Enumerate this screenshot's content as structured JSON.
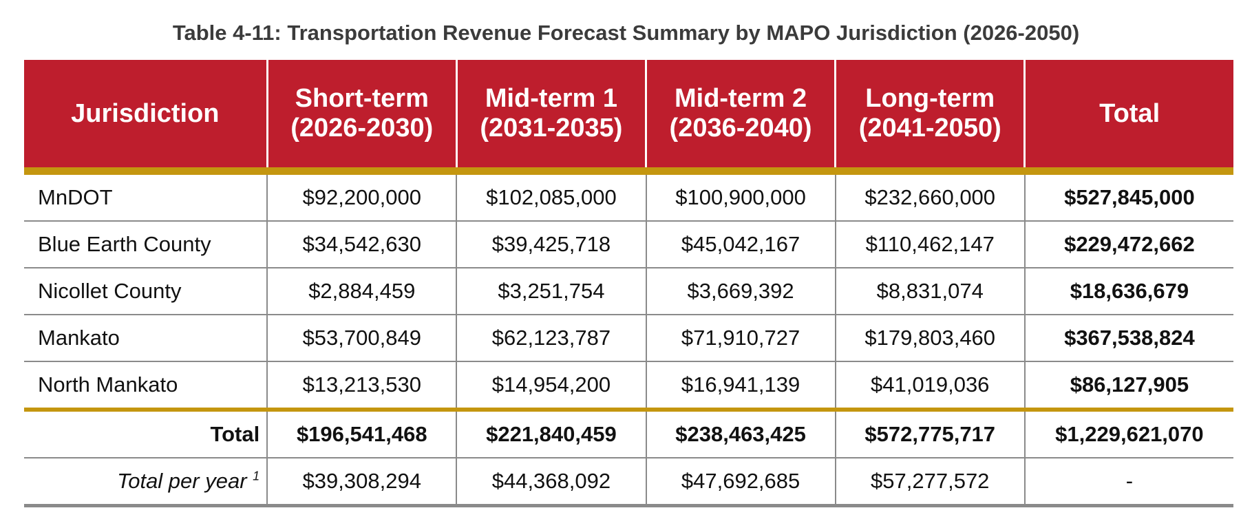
{
  "title": "Table 4-11: Transportation Revenue Forecast Summary by MAPO Jurisdiction (2026-2050)",
  "colors": {
    "header_bg": "#BE1E2D",
    "accent_rule": "#C4960F",
    "grid": "#8a8a8a"
  },
  "headers": [
    "Jurisdiction",
    "Short-term (2026-2030)",
    "Mid-term 1 (2031-2035)",
    "Mid-term 2 (2036-2040)",
    "Long-term (2041-2050)",
    "Total"
  ],
  "rows": [
    [
      "MnDOT",
      "$92,200,000",
      "$102,085,000",
      "$100,900,000",
      "$232,660,000",
      "$527,845,000"
    ],
    [
      "Blue Earth County",
      "$34,542,630",
      "$39,425,718",
      "$45,042,167",
      "$110,462,147",
      "$229,472,662"
    ],
    [
      "Nicollet County",
      "$2,884,459",
      "$3,251,754",
      "$3,669,392",
      "$8,831,074",
      "$18,636,679"
    ],
    [
      "Mankato",
      "$53,700,849",
      "$62,123,787",
      "$71,910,727",
      "$179,803,460",
      "$367,538,824"
    ],
    [
      "North Mankato",
      "$13,213,530",
      "$14,954,200",
      "$16,941,139",
      "$41,019,036",
      "$86,127,905"
    ]
  ],
  "total": [
    "Total",
    "$196,541,468",
    "$221,840,459",
    "$238,463,425",
    "$572,775,717",
    "$1,229,621,070"
  ],
  "per_year": {
    "label": "Total per year",
    "footnote": "1",
    "values": [
      "$39,308,294",
      "$44,368,092",
      "$47,692,685",
      "$57,277,572",
      "-"
    ]
  }
}
